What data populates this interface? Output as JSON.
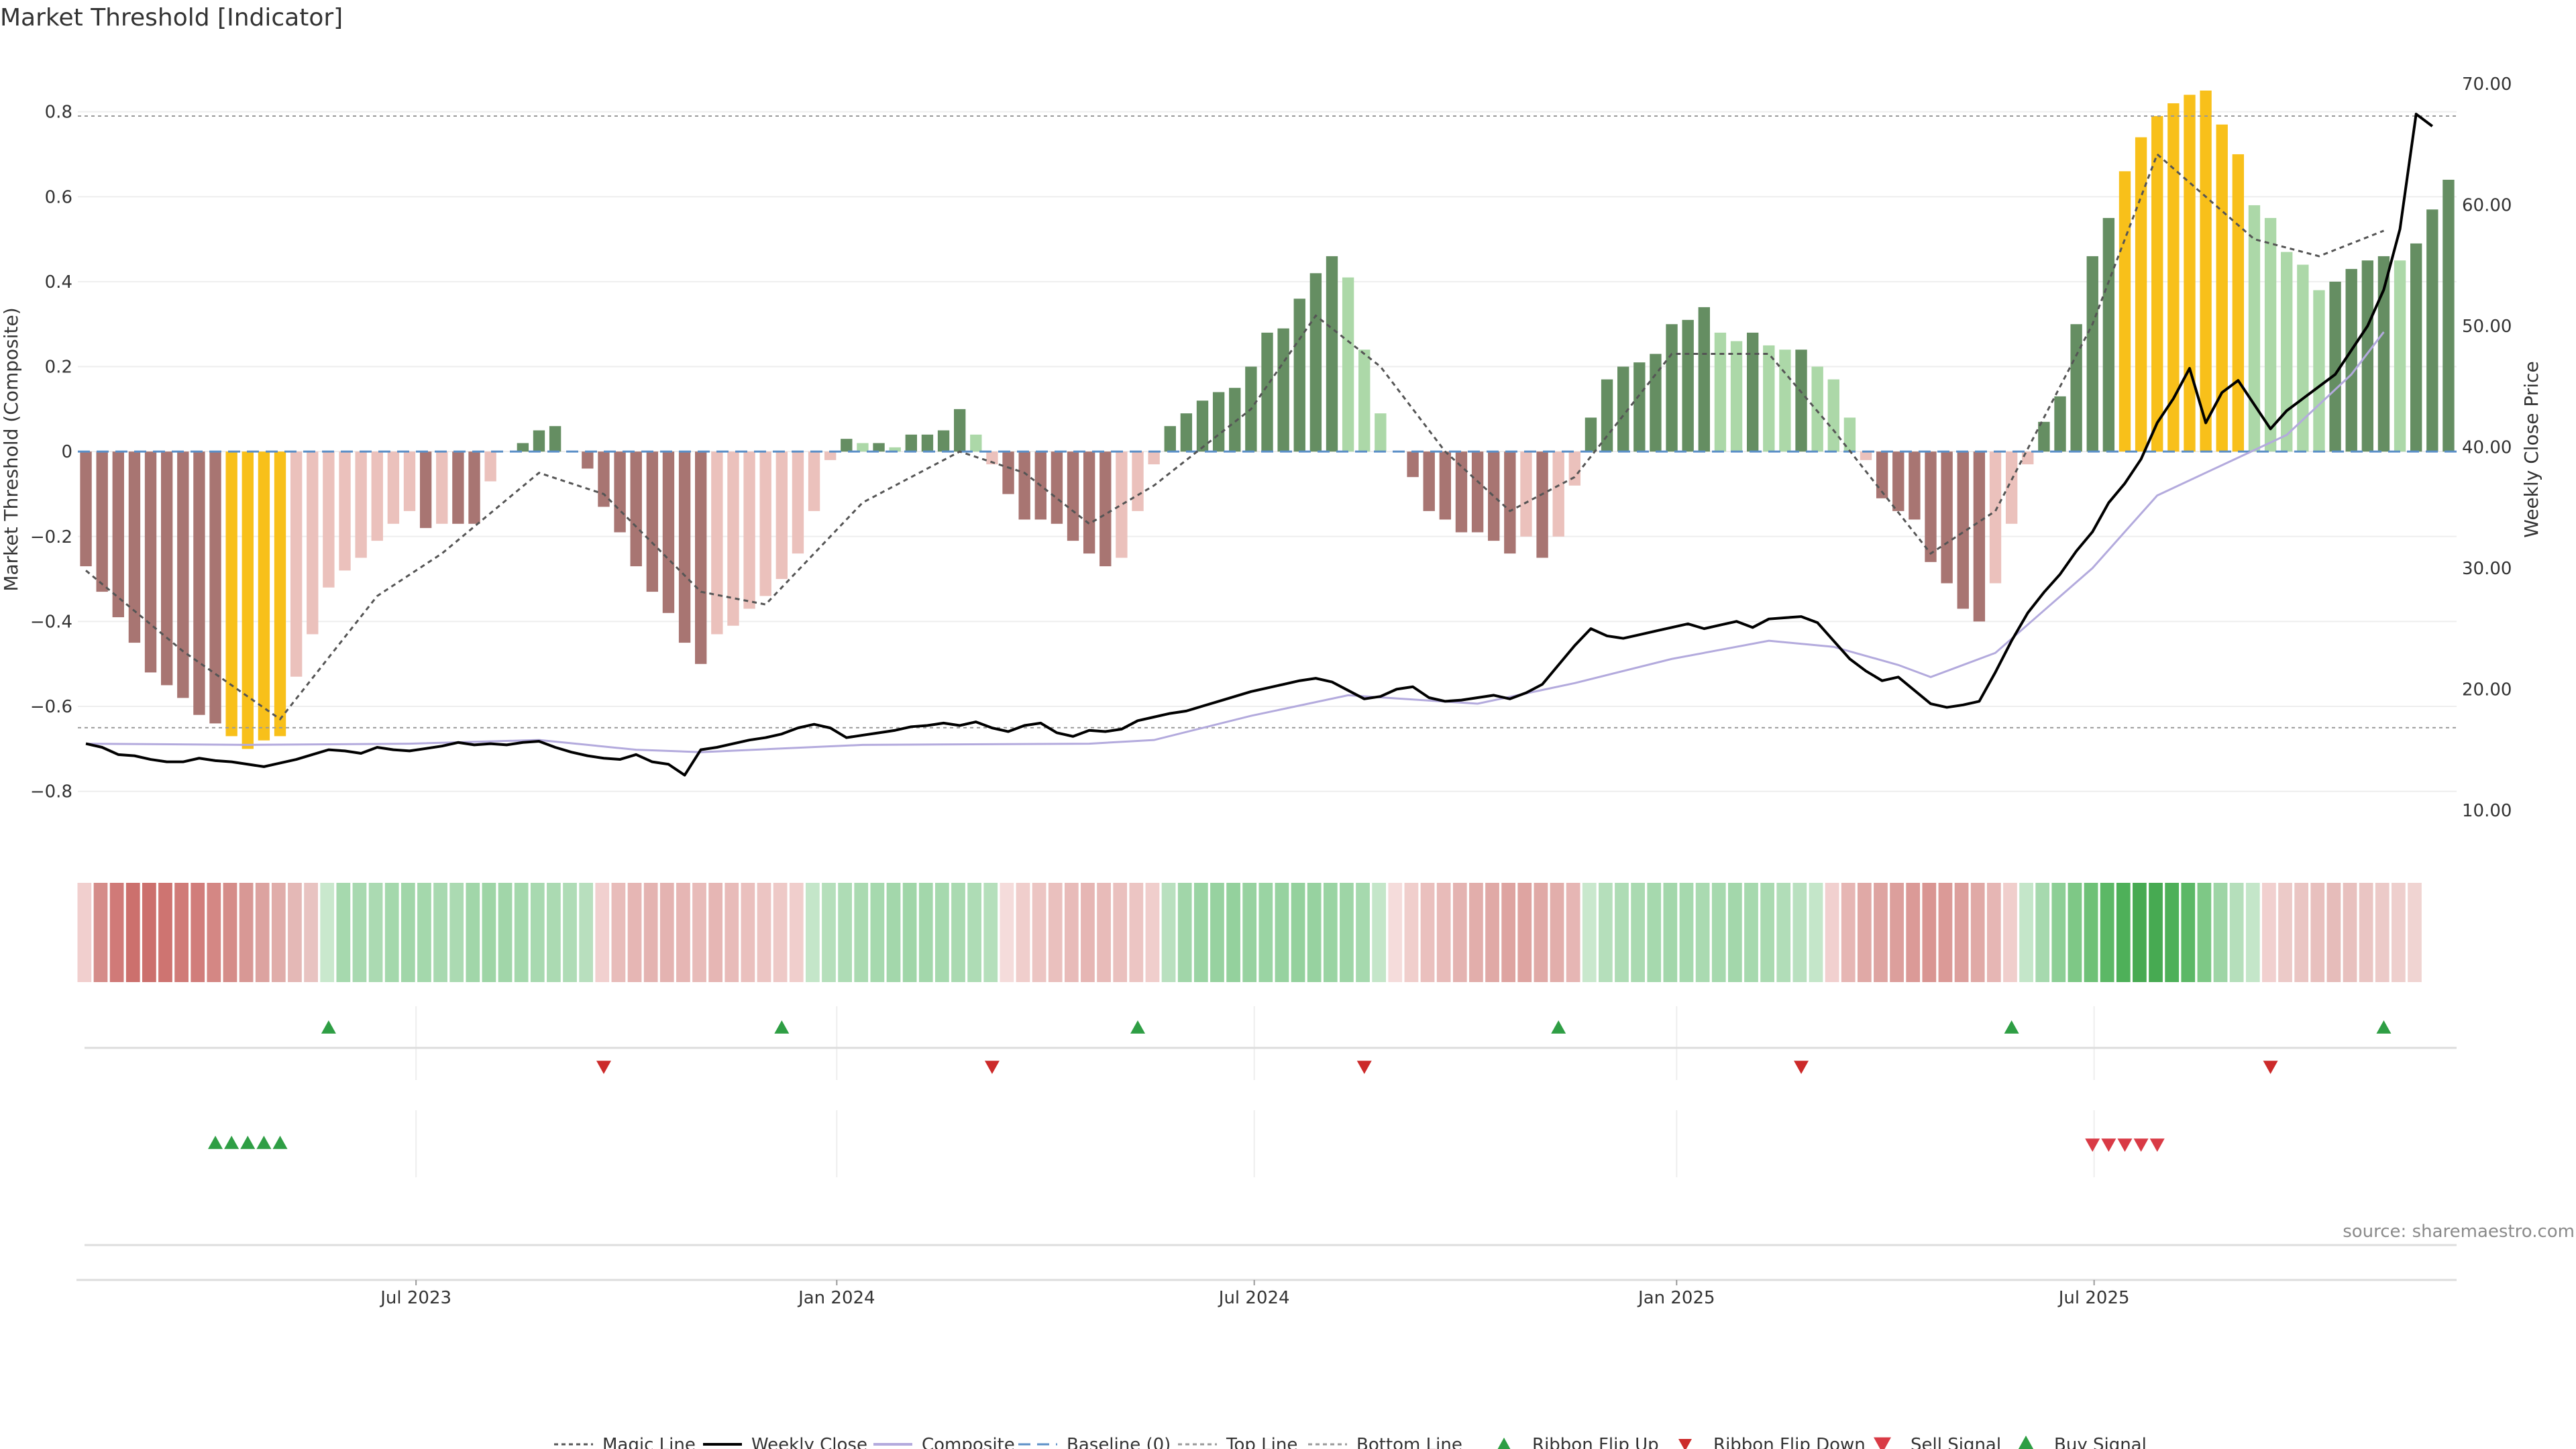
{
  "chart_data": {
    "type": "bar",
    "title": "Market Threshold [Indicator]",
    "ylabel_left": "Market Threshold (Composite)",
    "ylabel_right": "Weekly Close Price",
    "source": "source: sharemaestro.com",
    "ylim_left": [
      -0.93,
      0.94
    ],
    "ylim_right": [
      7,
      72.6
    ],
    "left_ticks": [
      "0.8",
      "0.6",
      "0.4",
      "0.2",
      "0",
      "−0.2",
      "−0.4",
      "−0.6",
      "−0.8"
    ],
    "left_tick_values": [
      0.8,
      0.6,
      0.4,
      0.2,
      0,
      -0.2,
      -0.4,
      -0.6,
      -0.8
    ],
    "right_ticks": [
      "70.00",
      "60.00",
      "50.00",
      "40.00",
      "30.00",
      "20.00",
      "10.00"
    ],
    "right_tick_values": [
      70,
      60,
      50,
      40,
      30,
      20,
      10
    ],
    "x_ticks": [
      "Jul 2023",
      "Jan 2024",
      "Jul 2024",
      "Jan 2025",
      "Jul 2025"
    ],
    "x_tick_weeks": [
      20.4,
      46.4,
      72.2,
      98.3,
      124.1
    ],
    "top_line": 0.79,
    "bottom_line": -0.65,
    "composite_bars": [
      -0.27,
      -0.33,
      -0.39,
      -0.45,
      -0.52,
      -0.55,
      -0.58,
      -0.62,
      -0.64,
      -0.67,
      -0.7,
      -0.68,
      -0.67,
      -0.53,
      -0.43,
      -0.32,
      -0.28,
      -0.25,
      -0.21,
      -0.17,
      -0.14,
      -0.18,
      -0.17,
      -0.17,
      -0.17,
      -0.07,
      0.0,
      0.02,
      0.05,
      0.06,
      0.0,
      -0.04,
      -0.13,
      -0.19,
      -0.27,
      -0.33,
      -0.38,
      -0.45,
      -0.5,
      -0.43,
      -0.41,
      -0.37,
      -0.34,
      -0.3,
      -0.24,
      -0.14,
      -0.02,
      0.03,
      0.02,
      0.02,
      0.01,
      0.04,
      0.04,
      0.05,
      0.1,
      0.04,
      -0.03,
      -0.1,
      -0.16,
      -0.16,
      -0.17,
      -0.21,
      -0.24,
      -0.27,
      -0.25,
      -0.14,
      -0.03,
      0.06,
      0.09,
      0.12,
      0.14,
      0.15,
      0.2,
      0.28,
      0.29,
      0.36,
      0.42,
      0.46,
      0.41,
      0.24,
      0.09,
      0.0,
      -0.06,
      -0.14,
      -0.16,
      -0.19,
      -0.19,
      -0.21,
      -0.24,
      -0.2,
      -0.25,
      -0.2,
      -0.08,
      0.08,
      0.17,
      0.2,
      0.21,
      0.23,
      0.3,
      0.31,
      0.34,
      0.28,
      0.26,
      0.28,
      0.25,
      0.24,
      0.24,
      0.2,
      0.17,
      0.08,
      -0.02,
      -0.11,
      -0.14,
      -0.16,
      -0.26,
      -0.31,
      -0.37,
      -0.4,
      -0.31,
      -0.17,
      -0.03,
      0.07,
      0.13,
      0.3,
      0.46,
      0.55,
      0.66,
      0.74,
      0.79,
      0.82,
      0.84,
      0.85,
      0.77,
      0.7,
      0.58,
      0.55,
      0.47,
      0.44,
      0.38,
      0.4,
      0.43,
      0.45,
      0.46,
      0.45,
      0.49,
      0.57,
      0.64
    ],
    "bar_colors": {
      "strong_bear": "#a87572",
      "weak_bear": "#ebc1bc",
      "strong_bull": "#658e62",
      "weak_bull": "#acd8a8",
      "extreme": "#f8c01a"
    },
    "magic_line_points": [
      [
        0,
        -0.28
      ],
      [
        6,
        -0.47
      ],
      [
        12,
        -0.63
      ],
      [
        18,
        -0.34
      ],
      [
        22,
        -0.24
      ],
      [
        28,
        -0.05
      ],
      [
        32,
        -0.1
      ],
      [
        38,
        -0.33
      ],
      [
        42,
        -0.36
      ],
      [
        48,
        -0.12
      ],
      [
        54,
        0.0
      ],
      [
        58,
        -0.05
      ],
      [
        62,
        -0.17
      ],
      [
        66,
        -0.08
      ],
      [
        72,
        0.1
      ],
      [
        76,
        0.32
      ],
      [
        80,
        0.2
      ],
      [
        84,
        0.0
      ],
      [
        88,
        -0.14
      ],
      [
        92,
        -0.06
      ],
      [
        98,
        0.23
      ],
      [
        104,
        0.23
      ],
      [
        108,
        0.05
      ],
      [
        114,
        -0.24
      ],
      [
        118,
        -0.14
      ],
      [
        124,
        0.3
      ],
      [
        128,
        0.7
      ],
      [
        134,
        0.5
      ],
      [
        138,
        0.46
      ],
      [
        142,
        0.52
      ]
    ],
    "composite_line_points": [
      [
        0,
        15.5
      ],
      [
        10,
        15.4
      ],
      [
        20,
        15.5
      ],
      [
        28,
        15.8
      ],
      [
        34,
        15.0
      ],
      [
        38,
        14.8
      ],
      [
        48,
        15.4
      ],
      [
        62,
        15.5
      ],
      [
        66,
        15.8
      ],
      [
        72,
        17.8
      ],
      [
        78,
        19.5
      ],
      [
        86,
        18.8
      ],
      [
        92,
        20.5
      ],
      [
        98,
        22.5
      ],
      [
        104,
        24.0
      ],
      [
        108,
        23.5
      ],
      [
        112,
        22.0
      ],
      [
        114,
        21.0
      ],
      [
        118,
        23.0
      ],
      [
        124,
        30.0
      ],
      [
        128,
        36.0
      ],
      [
        132,
        38.5
      ],
      [
        136,
        41.0
      ],
      [
        140,
        46.0
      ],
      [
        142,
        49.5
      ]
    ],
    "weekly_close": [
      15.5,
      15.2,
      14.6,
      14.5,
      14.2,
      14.0,
      14.0,
      14.3,
      14.1,
      14.0,
      13.8,
      13.6,
      13.9,
      14.2,
      14.6,
      15.0,
      14.9,
      14.7,
      15.2,
      15.0,
      14.9,
      15.1,
      15.3,
      15.6,
      15.4,
      15.5,
      15.4,
      15.6,
      15.7,
      15.2,
      14.8,
      14.5,
      14.3,
      14.2,
      14.6,
      14.0,
      13.8,
      12.9,
      15.0,
      15.2,
      15.5,
      15.8,
      16.0,
      16.3,
      16.8,
      17.1,
      16.8,
      16.0,
      16.2,
      16.4,
      16.6,
      16.9,
      17.0,
      17.2,
      17.0,
      17.3,
      16.8,
      16.5,
      17.0,
      17.2,
      16.4,
      16.1,
      16.6,
      16.5,
      16.7,
      17.4,
      17.7,
      18.0,
      18.2,
      18.6,
      19.0,
      19.4,
      19.8,
      20.1,
      20.4,
      20.7,
      20.9,
      20.6,
      19.9,
      19.2,
      19.4,
      20.0,
      20.2,
      19.3,
      19.0,
      19.1,
      19.3,
      19.5,
      19.2,
      19.7,
      20.4,
      22.0,
      23.6,
      25.0,
      24.4,
      24.2,
      24.5,
      24.8,
      25.1,
      25.4,
      25.0,
      25.3,
      25.6,
      25.1,
      25.8,
      25.9,
      26.0,
      25.5,
      24.0,
      22.5,
      21.5,
      20.7,
      21.0,
      19.9,
      18.8,
      18.5,
      18.7,
      19.0,
      21.4,
      24.0,
      26.3,
      28.0,
      29.5,
      31.4,
      33.0,
      35.4,
      37.0,
      39.0,
      42.0,
      44.0,
      46.5,
      42.0,
      44.5,
      45.5,
      43.5,
      41.5,
      43.0,
      44.0,
      45.0,
      46.0,
      48.0,
      50.0,
      53.0,
      58.0,
      67.5,
      66.5
    ]
  },
  "ribbon": {
    "colors": [
      "#f1cfce",
      "#d58c89",
      "#d07a78",
      "#cc706d",
      "#cc706d",
      "#ce7471",
      "#d07b78",
      "#d17d7b",
      "#d48784",
      "#d58c89",
      "#d89895",
      "#dca3a0",
      "#e0adaa",
      "#e4b8b6",
      "#e8c3c1",
      "#c9e8cd",
      "#a6d9ae",
      "#a8d9b0",
      "#abdab2",
      "#a4d8ac",
      "#a1d6a9",
      "#a4d8ac",
      "#a8d9b0",
      "#abdab2",
      "#a1d6a9",
      "#9ed5a6",
      "#a1d6a9",
      "#a4d8ac",
      "#a8d9b0",
      "#abdab2",
      "#afdcb6",
      "#b8dfbe",
      "#f1d0cf",
      "#e8bcba",
      "#e6b6b4",
      "#e4b3b1",
      "#e4b3b1",
      "#e6b6b4",
      "#e8bbb9",
      "#e6b6b4",
      "#e8bbb9",
      "#eac0be",
      "#ecc5c3",
      "#eec9c7",
      "#f0cecc",
      "#c4e6c9",
      "#b5dfbb",
      "#aedcb5",
      "#aadab1",
      "#a6d9ae",
      "#a3d7ab",
      "#a0d6a8",
      "#a3d7ab",
      "#a6d9ae",
      "#aadab1",
      "#aedcb5",
      "#b5dfbb",
      "#f5dcdb",
      "#f0cecc",
      "#ecc5c3",
      "#eac0be",
      "#e8bbb9",
      "#e6b6b4",
      "#e8bbb9",
      "#eac0be",
      "#ecc5c3",
      "#f0cecc",
      "#b9e0bf",
      "#a1d6a9",
      "#9ad4a3",
      "#97d2a0",
      "#94d19d",
      "#97d2a0",
      "#9ad4a3",
      "#97d2a0",
      "#94d19d",
      "#97d2a0",
      "#9ad4a3",
      "#9ed5a6",
      "#a6d9ae",
      "#c4e6c9",
      "#f5dcdb",
      "#f0cecc",
      "#eac0be",
      "#e8bbb9",
      "#e4b3b1",
      "#e2aeab",
      "#e0a9a6",
      "#dea4a1",
      "#dea4a1",
      "#e0a9a6",
      "#e2aeab",
      "#e6b6b4",
      "#c9e8cd",
      "#b5dfbb",
      "#aedcb5",
      "#aadab1",
      "#a6d9ae",
      "#a3d7ab",
      "#a6d9ae",
      "#aadab1",
      "#a6d9ae",
      "#a3d7ab",
      "#a6d9ae",
      "#aadab1",
      "#b1ddb8",
      "#b9e0bf",
      "#c4e6c9",
      "#f1d0cf",
      "#e6b6b4",
      "#e0a9a6",
      "#dea4a1",
      "#dc9f9c",
      "#db9a97",
      "#d99592",
      "#db9a97",
      "#dc9f9c",
      "#e0a9a6",
      "#e6b6b4",
      "#f0cecc",
      "#c4e6c9",
      "#a6d9ae",
      "#8dcf96",
      "#7ec886",
      "#6ec177",
      "#5cb866",
      "#4eb059",
      "#47aa52",
      "#47aa52",
      "#4eb059",
      "#5cb866",
      "#7ec886",
      "#9ed5a6",
      "#b5dfbb",
      "#c4e6c9",
      "#f1d0cf",
      "#eccac8",
      "#eac5c3",
      "#e8c0be",
      "#e6bcba",
      "#e8c0be",
      "#eac5c3",
      "#eccac8",
      "#eecfcd",
      "#f0d4d2"
    ]
  },
  "ribbon_flip_up_weeks": [
    15,
    43,
    65,
    91,
    119,
    142
  ],
  "ribbon_flip_down_weeks": [
    32,
    56,
    79,
    106,
    135
  ],
  "buy_signal_weeks": [
    8,
    9,
    10,
    11,
    12
  ],
  "sell_signal_weeks": [
    124,
    125,
    126,
    127,
    128
  ],
  "legend": [
    "Magic Line",
    "Weekly Close",
    "Composite",
    "Baseline (0)",
    "Top Line",
    "Bottom Line",
    "Ribbon Flip Up",
    "Ribbon Flip Down",
    "Sell Signal",
    "Buy Signal"
  ],
  "colors": {
    "magic": "#555555",
    "close": "#000000",
    "composite": "#b3aadd",
    "baseline": "#5b8fc7",
    "flip_up": "#2e9e44",
    "flip_down": "#cc2a2a",
    "sell": "#d93a45",
    "buy": "#2e9e44"
  }
}
